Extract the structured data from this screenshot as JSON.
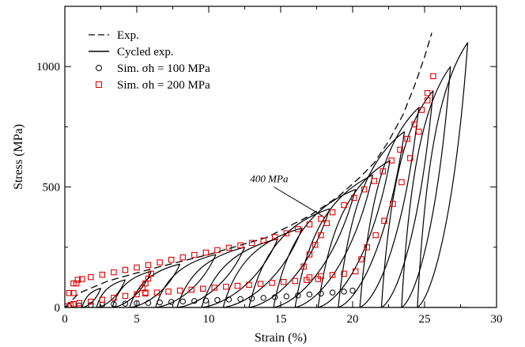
{
  "chart_data": {
    "type": "line",
    "xlabel": "Strain (%)",
    "ylabel": "Stress (MPa)",
    "xlim": [
      0,
      30
    ],
    "ylim": [
      0,
      1250
    ],
    "x_ticks": [
      0,
      5,
      10,
      15,
      20,
      25,
      30
    ],
    "x_tick_labels": [
      "0",
      "5",
      "10",
      "15",
      "20",
      "25",
      "30"
    ],
    "y_ticks": [
      0,
      500,
      1000
    ],
    "y_tick_labels": [
      "0",
      "500",
      "1000"
    ],
    "grid": false,
    "legend": {
      "placement": "top-left",
      "entries": [
        {
          "label": "Exp.",
          "style": "dashed",
          "color": "#000000"
        },
        {
          "label": "Cycled exp.",
          "style": "solid",
          "color": "#000000"
        },
        {
          "label": "Sim. σh = 100 MPa",
          "style": "circle-marker",
          "color": "#000000"
        },
        {
          "label": "Sim. σh = 200 MPa",
          "style": "square-marker",
          "color": "#e00000"
        }
      ]
    },
    "annotations": [
      {
        "text": "400 MPa",
        "x": 14.2,
        "y": 520,
        "arrow_to": [
          17.9,
          380
        ]
      }
    ],
    "exp_curve": {
      "name": "Exp.",
      "x": [
        0,
        1,
        3,
        6,
        10,
        14,
        17,
        19,
        20.5,
        21.5,
        22.5,
        23.5,
        24.3,
        25,
        25.5
      ],
      "y": [
        0,
        60,
        110,
        160,
        220,
        290,
        380,
        460,
        540,
        600,
        690,
        800,
        920,
        1040,
        1140
      ]
    },
    "cycles": [
      {
        "peak": [
          2.5,
          80
        ],
        "unload_end": 1.2
      },
      {
        "peak": [
          4.2,
          115
        ],
        "unload_end": 2.2
      },
      {
        "peak": [
          6.0,
          150
        ],
        "unload_end": 3.3
      },
      {
        "peak": [
          8.0,
          180
        ],
        "unload_end": 4.5
      },
      {
        "peak": [
          10.5,
          220
        ],
        "unload_end": 6.3
      },
      {
        "peak": [
          12.5,
          250
        ],
        "unload_end": 7.8
      },
      {
        "peak": [
          14.8,
          285
        ],
        "unload_end": 9.5
      },
      {
        "peak": [
          16.5,
          330
        ],
        "unload_end": 11.0
      },
      {
        "peak": [
          18.4,
          410
        ],
        "unload_end": 12.8
      },
      {
        "peak": [
          20.2,
          490
        ],
        "unload_end": 14.5
      },
      {
        "peak": [
          21.4,
          550
        ],
        "unload_end": 16.0
      },
      {
        "peak": [
          22.6,
          610
        ],
        "unload_end": 17.6
      },
      {
        "peak": [
          23.6,
          730
        ],
        "unload_end": 19.0
      },
      {
        "peak": [
          24.6,
          830
        ],
        "unload_end": 20.5
      },
      {
        "peak": [
          25.6,
          900
        ],
        "unload_end": 22.0
      },
      {
        "peak": [
          26.8,
          1000
        ],
        "unload_end": 23.4
      },
      {
        "peak": [
          28.0,
          1100
        ],
        "unload_end": 24.5
      }
    ],
    "sim_100": {
      "name": "Sim. σh = 100 MPa",
      "x": [
        0.3,
        1.0,
        1.8,
        2.6,
        3.4,
        4.2,
        5.0,
        5.8,
        6.6,
        7.4,
        8.2,
        9.0,
        9.8,
        10.6,
        11.4,
        12.2,
        13.0,
        13.8,
        14.6,
        15.4,
        16.2,
        17.0,
        17.8,
        18.6,
        19.4,
        20.0
      ],
      "y": [
        5,
        8,
        10,
        12,
        14,
        16,
        18,
        19,
        21,
        23,
        25,
        27,
        29,
        31,
        33,
        35,
        37,
        40,
        43,
        46,
        50,
        54,
        58,
        62,
        66,
        70
      ]
    },
    "sim_200": {
      "name": "Sim. σh = 200 MPa",
      "x": [
        0.0,
        0.3,
        0.6,
        0.9,
        1.2,
        1.8,
        2.6,
        3.4,
        4.2,
        5.0,
        5.8,
        6.6,
        7.4,
        8.2,
        9.0,
        9.8,
        10.6,
        11.4,
        12.2,
        13.0,
        13.8,
        14.6,
        15.4,
        16.2,
        17.0,
        17.8,
        18.6,
        19.4,
        20.1,
        20.8,
        21.5,
        22.1,
        22.7,
        23.3,
        23.8,
        24.3,
        24.8,
        25.2,
        25.6,
        25.2,
        24.6,
        24.0,
        23.4,
        22.8,
        22.2,
        21.6,
        21.0,
        20.6,
        20.2,
        19.4,
        18.6,
        17.8,
        17.0,
        16.6,
        17.0,
        17.4,
        17.8,
        18.2,
        17.6,
        16.8,
        16.0,
        15.2,
        14.4,
        13.6,
        12.8,
        12.0,
        11.2,
        10.4,
        9.6,
        8.8,
        8.0,
        7.2,
        6.4,
        5.6,
        5.4,
        5.6,
        5.8,
        6.0,
        5.6,
        5.0,
        4.2,
        3.4,
        2.6,
        1.8,
        1.0,
        0.6,
        0.4,
        0.6,
        0.8
      ],
      "y": [
        5,
        60,
        100,
        115,
        118,
        126,
        136,
        146,
        156,
        166,
        176,
        187,
        198,
        208,
        218,
        228,
        238,
        248,
        258,
        268,
        278,
        292,
        308,
        325,
        345,
        368,
        395,
        425,
        455,
        490,
        525,
        565,
        610,
        655,
        700,
        760,
        820,
        890,
        960,
        860,
        730,
        620,
        520,
        430,
        360,
        300,
        250,
        200,
        150,
        140,
        135,
        130,
        125,
        170,
        220,
        260,
        300,
        350,
        118,
        114,
        110,
        106,
        102,
        98,
        94,
        90,
        86,
        82,
        78,
        74,
        70,
        66,
        62,
        58,
        80,
        100,
        120,
        140,
        62,
        55,
        48,
        40,
        32,
        24,
        18,
        14,
        10,
        60,
        100
      ]
    }
  }
}
